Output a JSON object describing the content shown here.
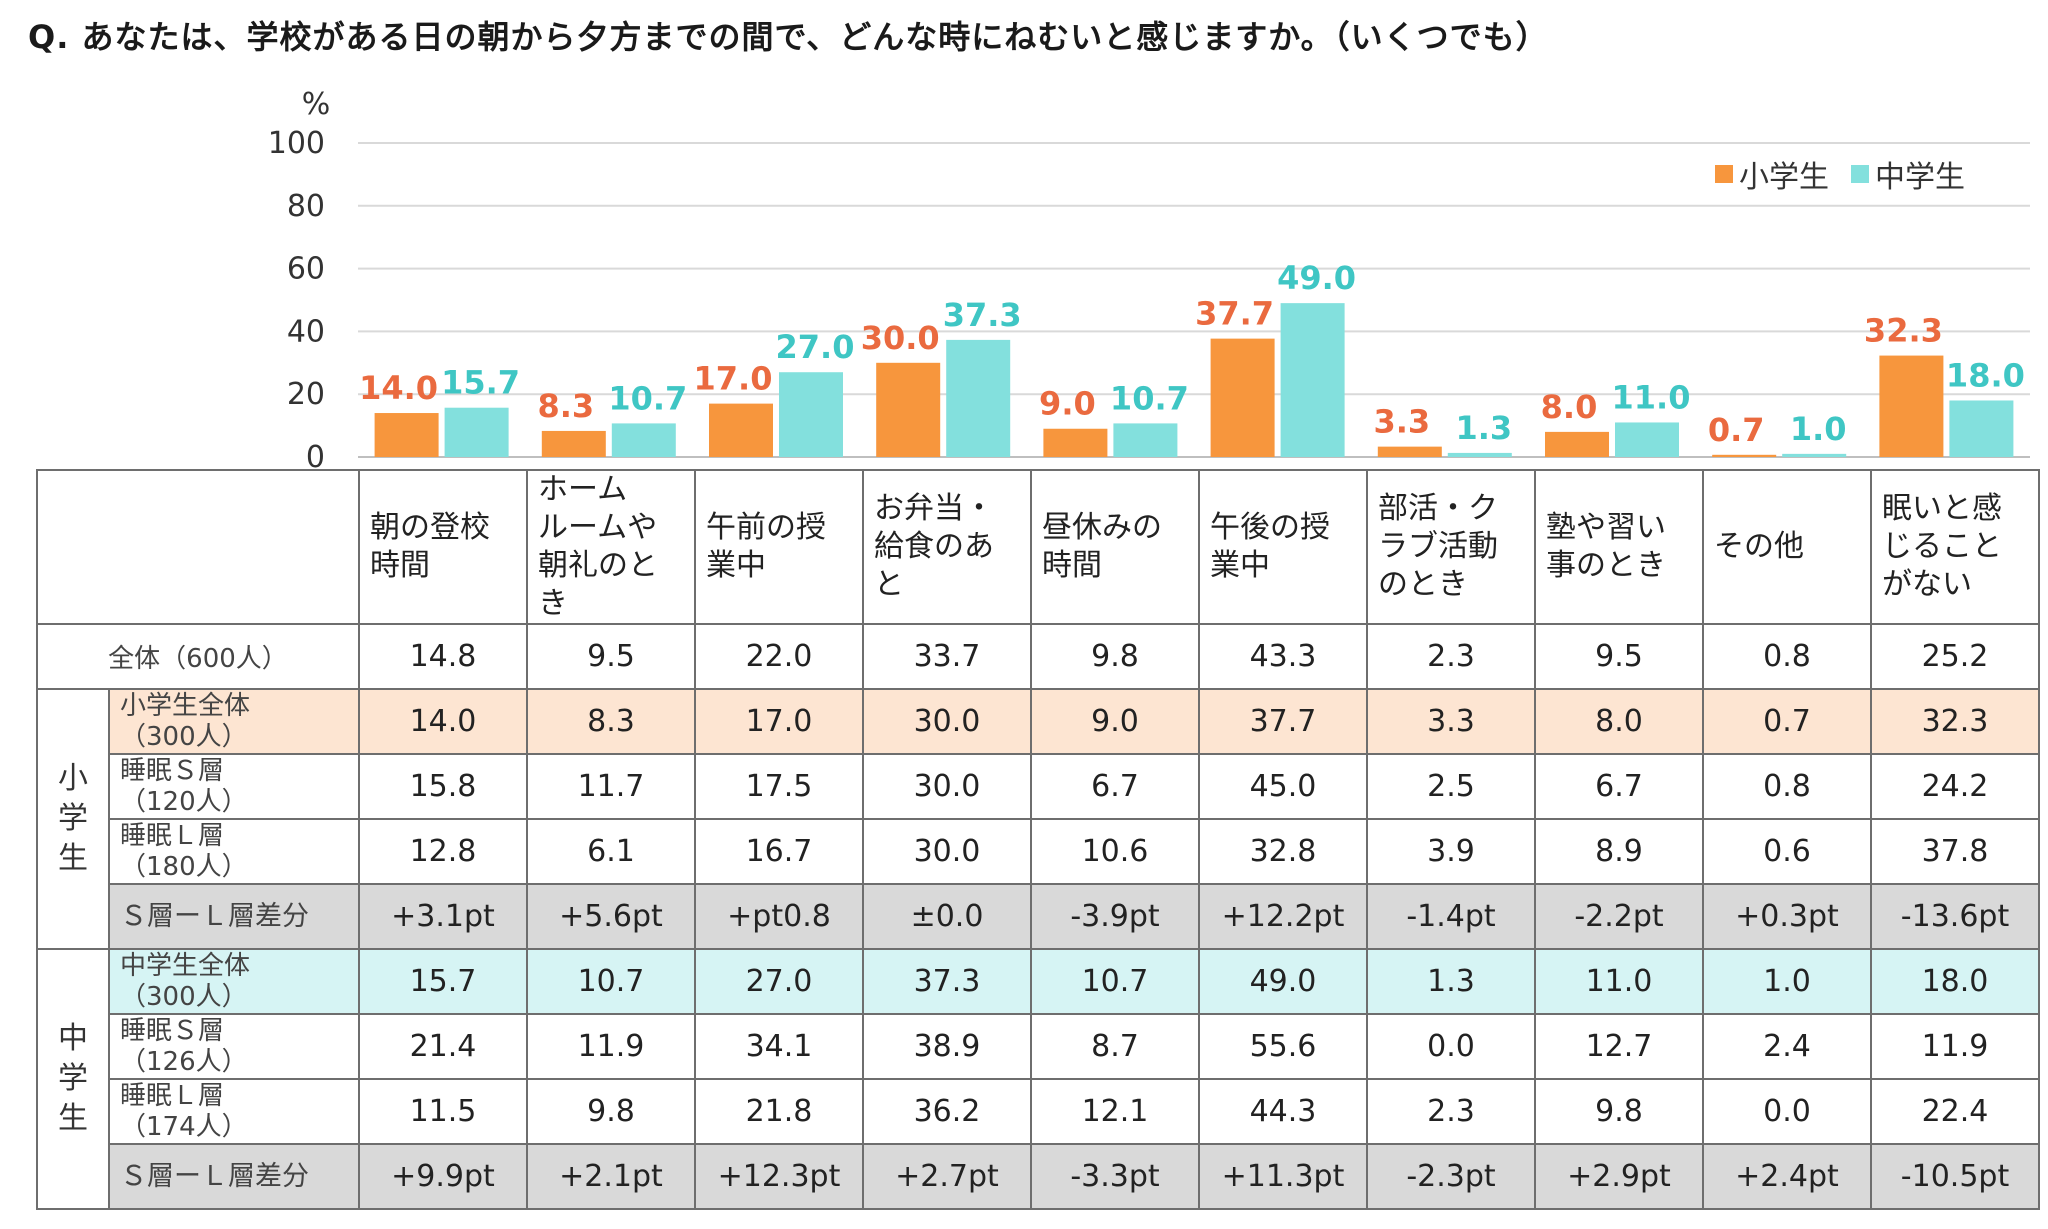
{
  "question": "Q. あなたは、学校がある日の朝から夕方までの間で、どんな時にねむいと感じますか。（いくつでも）",
  "chart_data": {
    "type": "bar",
    "ylabel": "%",
    "ylim": [
      0,
      100
    ],
    "yticks": [
      "0",
      "20",
      "40",
      "60",
      "80",
      "100"
    ],
    "grid": true,
    "legend_position": "top-right",
    "categories": [
      "朝の登校時間",
      "ホームルームや朝礼のとき",
      "午前の授業中",
      "お弁当・給食のあと",
      "昼休みの時間",
      "午後の授業中",
      "部活・クラブ活動のとき",
      "塾や習い事のとき",
      "その他",
      "眠いと感じることがない"
    ],
    "series": [
      {
        "name": "小学生",
        "color": "#f7963d",
        "label_color": "#ea6a3f",
        "values": [
          14.0,
          8.3,
          17.0,
          30.0,
          9.0,
          37.7,
          3.3,
          8.0,
          0.7,
          32.3
        ],
        "labels": [
          "14.0",
          "8.3",
          "17.0",
          "30.0",
          "9.0",
          "37.7",
          "3.3",
          "8.0",
          "0.7",
          "32.3"
        ]
      },
      {
        "name": "中学生",
        "color": "#83e0dd",
        "label_color": "#3fc6c4",
        "values": [
          15.7,
          10.7,
          27.0,
          37.3,
          10.7,
          49.0,
          1.3,
          11.0,
          1.0,
          18.0
        ],
        "labels": [
          "15.7",
          "10.7",
          "27.0",
          "37.3",
          "10.7",
          "49.0",
          "1.3",
          "11.0",
          "1.0",
          "18.0"
        ]
      }
    ]
  },
  "table": {
    "headers": [
      "朝の登校\n時間",
      "ホーム\nルームや\n朝礼のと\nき",
      "午前の授\n業中",
      "お弁当・\n給食のあ\nと",
      "昼休みの\n時間",
      "午後の授\n業中",
      "部活・ク\nラブ活動\nのとき",
      "塾や習い\n事のとき",
      "その他",
      "眠いと感\nじること\nがない"
    ],
    "overall": {
      "label": "全体（600人）",
      "values": [
        "14.8",
        "9.5",
        "22.0",
        "33.7",
        "9.8",
        "43.3",
        "2.3",
        "9.5",
        "0.8",
        "25.2"
      ]
    },
    "elementary": {
      "group_label": "小学生",
      "rows": [
        {
          "label": "小学生全体\n（300人）",
          "values": [
            "14.0",
            "8.3",
            "17.0",
            "30.0",
            "9.0",
            "37.7",
            "3.3",
            "8.0",
            "0.7",
            "32.3"
          ]
        },
        {
          "label": "睡眠Ｓ層\n（120人）",
          "values": [
            "15.8",
            "11.7",
            "17.5",
            "30.0",
            "6.7",
            "45.0",
            "2.5",
            "6.7",
            "0.8",
            "24.2"
          ]
        },
        {
          "label": "睡眠Ｌ層\n（180人）",
          "values": [
            "12.8",
            "6.1",
            "16.7",
            "30.0",
            "10.6",
            "32.8",
            "3.9",
            "8.9",
            "0.6",
            "37.8"
          ]
        },
        {
          "label": "Ｓ層ーＬ層差分",
          "values": [
            "+3.1pt",
            "+5.6pt",
            "+pt0.8",
            "±0.0",
            "-3.9pt",
            "+12.2pt",
            "-1.4pt",
            "-2.2pt",
            "+0.3pt",
            "-13.6pt"
          ]
        }
      ]
    },
    "junior": {
      "group_label": "中学生",
      "rows": [
        {
          "label": "中学生全体\n（300人）",
          "values": [
            "15.7",
            "10.7",
            "27.0",
            "37.3",
            "10.7",
            "49.0",
            "1.3",
            "11.0",
            "1.0",
            "18.0"
          ]
        },
        {
          "label": "睡眠Ｓ層\n（126人）",
          "values": [
            "21.4",
            "11.9",
            "34.1",
            "38.9",
            "8.7",
            "55.6",
            "0.0",
            "12.7",
            "2.4",
            "11.9"
          ]
        },
        {
          "label": "睡眠Ｌ層\n（174人）",
          "values": [
            "11.5",
            "9.8",
            "21.8",
            "36.2",
            "12.1",
            "44.3",
            "2.3",
            "9.8",
            "0.0",
            "22.4"
          ]
        },
        {
          "label": "Ｓ層ーＬ層差分",
          "values": [
            "+9.9pt",
            "+2.1pt",
            "+12.3pt",
            "+2.7pt",
            "-3.3pt",
            "+11.3pt",
            "-2.3pt",
            "+2.9pt",
            "+2.4pt",
            "-10.5pt"
          ]
        }
      ]
    }
  }
}
